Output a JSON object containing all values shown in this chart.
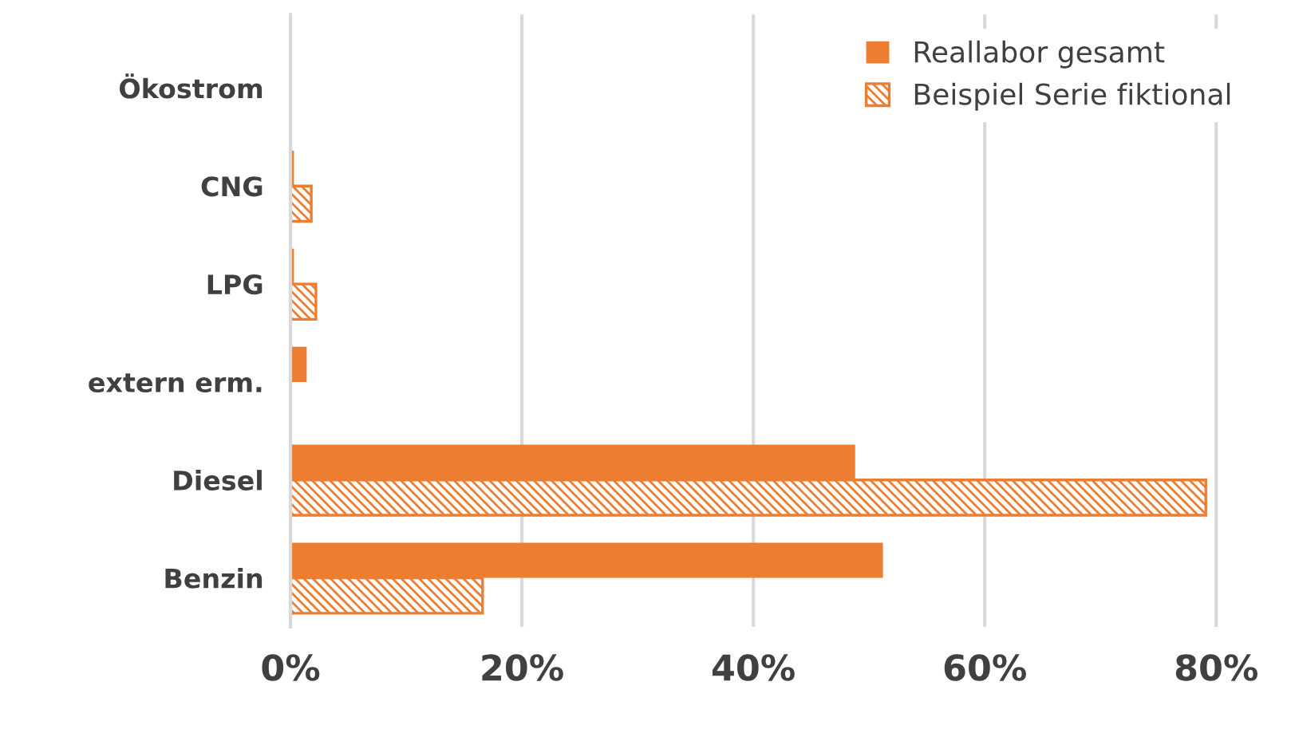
{
  "chart_data": {
    "type": "bar",
    "orientation": "horizontal",
    "categories": [
      "Ökostrom",
      "CNG",
      "LPG",
      "extern erm.",
      "Diesel",
      "Benzin"
    ],
    "series": [
      {
        "name": "Reallabor gesamt",
        "color": "#ed7d31",
        "values": [
          0,
          0.3,
          0.3,
          1.4,
          48.8,
          51.2
        ]
      },
      {
        "name": "Beispiel Serie fiktional",
        "color": "#ed7d31",
        "values": [
          0,
          1.8,
          2.2,
          0,
          79.1,
          16.6
        ]
      }
    ],
    "xlim": [
      0,
      82
    ],
    "xticks": [
      {
        "value": 0,
        "label": "0%"
      },
      {
        "value": 20,
        "label": "20%"
      },
      {
        "value": 40,
        "label": "40%"
      },
      {
        "value": 60,
        "label": "60%"
      },
      {
        "value": 80,
        "label": "80%"
      }
    ],
    "grid": "x",
    "legend": "top right"
  }
}
